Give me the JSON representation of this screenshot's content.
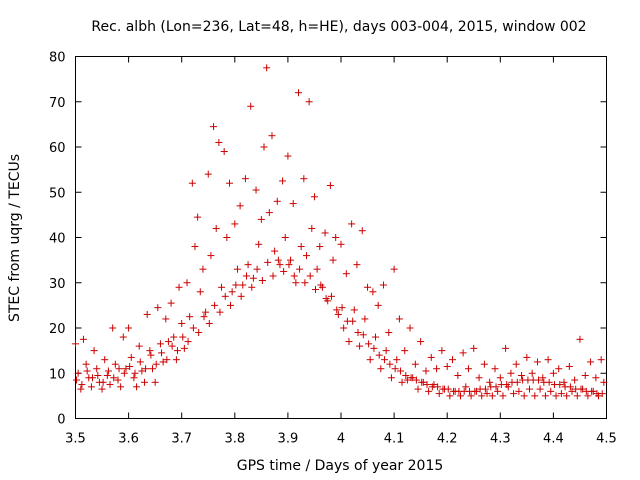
{
  "chart_data": {
    "type": "scatter",
    "title": "Rec. albh (Lon=236, Lat=48, h=HE), days 003-004, 2015, window 002",
    "xlabel": "GPS time / Days of year 2015",
    "ylabel": "STEC from uqrg / TECUs",
    "xlim": [
      3.5,
      4.5
    ],
    "ylim": [
      0,
      80
    ],
    "xticks": [
      "3.5",
      "3.6",
      "3.7",
      "3.8",
      "3.9",
      "4",
      "4.1",
      "4.2",
      "4.3",
      "4.4",
      "4.5"
    ],
    "yticks": [
      "0",
      "10",
      "20",
      "30",
      "40",
      "50",
      "60",
      "70",
      "80"
    ],
    "marker": "plus",
    "color": "#cc0000",
    "series": [
      {
        "name": "STEC",
        "points": [
          [
            3.5,
            16.5
          ],
          [
            3.505,
            10.0
          ],
          [
            3.51,
            6.5
          ],
          [
            3.515,
            17.5
          ],
          [
            3.52,
            12.0
          ],
          [
            3.525,
            9.0
          ],
          [
            3.53,
            7.0
          ],
          [
            3.535,
            15.0
          ],
          [
            3.54,
            11.0
          ],
          [
            3.545,
            8.0
          ],
          [
            3.55,
            6.5
          ],
          [
            3.555,
            13.0
          ],
          [
            3.56,
            9.5
          ],
          [
            3.565,
            7.5
          ],
          [
            3.57,
            20.0
          ],
          [
            3.575,
            12.0
          ],
          [
            3.58,
            8.5
          ],
          [
            3.585,
            7.0
          ],
          [
            3.59,
            18.0
          ],
          [
            3.595,
            11.0
          ],
          [
            3.6,
            20.0
          ],
          [
            3.605,
            13.5
          ],
          [
            3.61,
            9.0
          ],
          [
            3.615,
            7.0
          ],
          [
            3.62,
            16.0
          ],
          [
            3.625,
            10.5
          ],
          [
            3.63,
            8.0
          ],
          [
            3.635,
            23.0
          ],
          [
            3.64,
            15.0
          ],
          [
            3.645,
            11.0
          ],
          [
            3.65,
            8.0
          ],
          [
            3.655,
            24.5
          ],
          [
            3.66,
            16.5
          ],
          [
            3.665,
            12.5
          ],
          [
            3.67,
            22.0
          ],
          [
            3.675,
            17.0
          ],
          [
            3.68,
            25.5
          ],
          [
            3.685,
            18.0
          ],
          [
            3.69,
            13.0
          ],
          [
            3.695,
            29.0
          ],
          [
            3.7,
            21.0
          ],
          [
            3.705,
            15.5
          ],
          [
            3.71,
            30.0
          ],
          [
            3.715,
            22.5
          ],
          [
            3.72,
            52.0
          ],
          [
            3.725,
            38.0
          ],
          [
            3.73,
            44.5
          ],
          [
            3.735,
            28.0
          ],
          [
            3.74,
            33.0
          ],
          [
            3.745,
            23.5
          ],
          [
            3.75,
            54.0
          ],
          [
            3.755,
            36.0
          ],
          [
            3.76,
            64.5
          ],
          [
            3.765,
            42.0
          ],
          [
            3.77,
            61.0
          ],
          [
            3.775,
            29.0
          ],
          [
            3.78,
            59.0
          ],
          [
            3.785,
            40.0
          ],
          [
            3.79,
            52.0
          ],
          [
            3.795,
            28.0
          ],
          [
            3.8,
            43.0
          ],
          [
            3.805,
            33.0
          ],
          [
            3.81,
            47.0
          ],
          [
            3.815,
            29.5
          ],
          [
            3.82,
            53.0
          ],
          [
            3.825,
            34.0
          ],
          [
            3.83,
            69.0
          ],
          [
            3.835,
            31.0
          ],
          [
            3.84,
            50.5
          ],
          [
            3.845,
            38.5
          ],
          [
            3.85,
            44.0
          ],
          [
            3.855,
            60.0
          ],
          [
            3.86,
            77.5
          ],
          [
            3.865,
            45.5
          ],
          [
            3.87,
            62.5
          ],
          [
            3.875,
            37.0
          ],
          [
            3.88,
            48.0
          ],
          [
            3.885,
            34.0
          ],
          [
            3.89,
            52.5
          ],
          [
            3.895,
            40.0
          ],
          [
            3.9,
            58.0
          ],
          [
            3.905,
            35.0
          ],
          [
            3.91,
            47.5
          ],
          [
            3.915,
            30.0
          ],
          [
            3.92,
            72.0
          ],
          [
            3.925,
            38.0
          ],
          [
            3.93,
            53.0
          ],
          [
            3.935,
            36.0
          ],
          [
            3.94,
            70.0
          ],
          [
            3.945,
            42.0
          ],
          [
            3.95,
            49.0
          ],
          [
            3.955,
            33.0
          ],
          [
            3.96,
            38.0
          ],
          [
            3.965,
            29.0
          ],
          [
            3.97,
            41.0
          ],
          [
            3.975,
            26.0
          ],
          [
            3.98,
            51.5
          ],
          [
            3.985,
            35.0
          ],
          [
            3.99,
            40.0
          ],
          [
            3.995,
            23.0
          ],
          [
            4.0,
            38.5
          ],
          [
            4.005,
            20.0
          ],
          [
            4.01,
            32.0
          ],
          [
            4.015,
            17.0
          ],
          [
            4.02,
            43.0
          ],
          [
            4.025,
            24.0
          ],
          [
            4.03,
            34.0
          ],
          [
            4.035,
            16.0
          ],
          [
            4.04,
            41.5
          ],
          [
            4.045,
            22.0
          ],
          [
            4.05,
            29.0
          ],
          [
            4.055,
            13.0
          ],
          [
            4.06,
            28.0
          ],
          [
            4.065,
            18.0
          ],
          [
            4.07,
            25.0
          ],
          [
            4.075,
            11.0
          ],
          [
            4.08,
            29.5
          ],
          [
            4.085,
            15.0
          ],
          [
            4.09,
            19.0
          ],
          [
            4.095,
            9.0
          ],
          [
            4.1,
            33.0
          ],
          [
            4.105,
            13.0
          ],
          [
            4.11,
            22.0
          ],
          [
            4.115,
            8.0
          ],
          [
            4.12,
            15.0
          ],
          [
            4.125,
            8.5
          ],
          [
            4.13,
            20.0
          ],
          [
            4.135,
            9.0
          ],
          [
            4.14,
            12.0
          ],
          [
            4.145,
            6.5
          ],
          [
            4.15,
            17.0
          ],
          [
            4.155,
            8.0
          ],
          [
            4.16,
            10.5
          ],
          [
            4.165,
            6.0
          ],
          [
            4.17,
            13.5
          ],
          [
            4.175,
            7.5
          ],
          [
            4.18,
            11.0
          ],
          [
            4.185,
            5.5
          ],
          [
            4.19,
            15.0
          ],
          [
            4.195,
            6.5
          ],
          [
            4.2,
            11.5
          ],
          [
            4.205,
            5.0
          ],
          [
            4.21,
            13.0
          ],
          [
            4.215,
            6.0
          ],
          [
            4.22,
            9.5
          ],
          [
            4.225,
            5.0
          ],
          [
            4.23,
            14.5
          ],
          [
            4.235,
            7.0
          ],
          [
            4.24,
            11.0
          ],
          [
            4.245,
            5.0
          ],
          [
            4.25,
            15.5
          ],
          [
            4.255,
            6.0
          ],
          [
            4.26,
            9.0
          ],
          [
            4.265,
            5.0
          ],
          [
            4.27,
            12.0
          ],
          [
            4.275,
            5.5
          ],
          [
            4.28,
            8.0
          ],
          [
            4.285,
            5.0
          ],
          [
            4.29,
            11.0
          ],
          [
            4.295,
            6.0
          ],
          [
            4.3,
            9.0
          ],
          [
            4.305,
            5.0
          ],
          [
            4.31,
            15.5
          ],
          [
            4.315,
            7.0
          ],
          [
            4.32,
            10.0
          ],
          [
            4.325,
            5.5
          ],
          [
            4.33,
            12.0
          ],
          [
            4.335,
            6.0
          ],
          [
            4.34,
            9.5
          ],
          [
            4.345,
            5.0
          ],
          [
            4.35,
            13.5
          ],
          [
            4.355,
            6.5
          ],
          [
            4.36,
            10.0
          ],
          [
            4.365,
            5.0
          ],
          [
            4.37,
            12.5
          ],
          [
            4.375,
            6.5
          ],
          [
            4.38,
            9.0
          ],
          [
            4.385,
            5.0
          ],
          [
            4.39,
            13.0
          ],
          [
            4.395,
            6.0
          ],
          [
            4.4,
            10.0
          ],
          [
            4.405,
            5.0
          ],
          [
            4.41,
            11.0
          ],
          [
            4.415,
            5.5
          ],
          [
            4.42,
            8.0
          ],
          [
            4.425,
            5.0
          ],
          [
            4.43,
            11.5
          ],
          [
            4.435,
            6.0
          ],
          [
            4.44,
            8.5
          ],
          [
            4.445,
            5.0
          ],
          [
            4.45,
            17.5
          ],
          [
            4.455,
            6.5
          ],
          [
            4.46,
            9.5
          ],
          [
            4.465,
            5.0
          ],
          [
            4.47,
            12.5
          ],
          [
            4.475,
            6.0
          ],
          [
            4.48,
            9.0
          ],
          [
            4.485,
            5.0
          ],
          [
            4.49,
            13.0
          ],
          [
            4.495,
            8.0
          ],
          [
            3.502,
            8.5
          ],
          [
            3.512,
            7.5
          ],
          [
            3.522,
            10.5
          ],
          [
            3.532,
            9.0
          ],
          [
            3.542,
            9.5
          ],
          [
            3.552,
            8.0
          ],
          [
            3.562,
            10.5
          ],
          [
            3.572,
            9.0
          ],
          [
            3.582,
            11.0
          ],
          [
            3.592,
            10.0
          ],
          [
            3.602,
            11.5
          ],
          [
            3.612,
            10.0
          ],
          [
            3.622,
            12.5
          ],
          [
            3.632,
            11.0
          ],
          [
            3.642,
            14.0
          ],
          [
            3.652,
            12.0
          ],
          [
            3.662,
            14.5
          ],
          [
            3.672,
            13.0
          ],
          [
            3.682,
            16.0
          ],
          [
            3.692,
            15.0
          ],
          [
            3.702,
            18.0
          ],
          [
            3.712,
            17.0
          ],
          [
            3.722,
            20.0
          ],
          [
            3.732,
            19.0
          ],
          [
            3.742,
            22.5
          ],
          [
            3.752,
            21.0
          ],
          [
            3.762,
            25.0
          ],
          [
            3.772,
            23.5
          ],
          [
            3.782,
            27.0
          ],
          [
            3.792,
            25.0
          ],
          [
            3.802,
            29.5
          ],
          [
            3.812,
            27.0
          ],
          [
            3.822,
            31.5
          ],
          [
            3.832,
            29.0
          ],
          [
            3.842,
            33.0
          ],
          [
            3.852,
            30.5
          ],
          [
            3.862,
            34.5
          ],
          [
            3.872,
            31.5
          ],
          [
            3.882,
            35.0
          ],
          [
            3.892,
            32.5
          ],
          [
            3.902,
            34.0
          ],
          [
            3.912,
            31.5
          ],
          [
            3.922,
            33.0
          ],
          [
            3.932,
            30.0
          ],
          [
            3.942,
            31.5
          ],
          [
            3.952,
            28.5
          ],
          [
            3.962,
            29.5
          ],
          [
            3.972,
            26.5
          ],
          [
            3.982,
            27.0
          ],
          [
            3.992,
            24.0
          ],
          [
            4.002,
            24.5
          ],
          [
            4.012,
            21.5
          ],
          [
            4.022,
            21.5
          ],
          [
            4.032,
            19.0
          ],
          [
            4.042,
            18.5
          ],
          [
            4.052,
            16.5
          ],
          [
            4.062,
            15.5
          ],
          [
            4.072,
            14.0
          ],
          [
            4.082,
            13.0
          ],
          [
            4.092,
            12.0
          ],
          [
            4.102,
            11.0
          ],
          [
            4.112,
            10.5
          ],
          [
            4.122,
            9.5
          ],
          [
            4.132,
            9.0
          ],
          [
            4.142,
            8.5
          ],
          [
            4.152,
            8.0
          ],
          [
            4.162,
            7.5
          ],
          [
            4.172,
            7.0
          ],
          [
            4.182,
            7.0
          ],
          [
            4.192,
            6.5
          ],
          [
            4.202,
            6.5
          ],
          [
            4.212,
            6.0
          ],
          [
            4.222,
            6.0
          ],
          [
            4.232,
            6.0
          ],
          [
            4.242,
            6.0
          ],
          [
            4.252,
            6.0
          ],
          [
            4.262,
            6.5
          ],
          [
            4.272,
            6.5
          ],
          [
            4.282,
            7.0
          ],
          [
            4.292,
            7.0
          ],
          [
            4.302,
            7.5
          ],
          [
            4.312,
            7.5
          ],
          [
            4.322,
            8.0
          ],
          [
            4.332,
            8.0
          ],
          [
            4.342,
            8.5
          ],
          [
            4.352,
            8.5
          ],
          [
            4.362,
            8.5
          ],
          [
            4.372,
            8.5
          ],
          [
            4.382,
            8.0
          ],
          [
            4.392,
            8.0
          ],
          [
            4.402,
            7.5
          ],
          [
            4.412,
            7.5
          ],
          [
            4.422,
            7.0
          ],
          [
            4.432,
            7.0
          ],
          [
            4.442,
            6.5
          ],
          [
            4.452,
            6.5
          ],
          [
            4.462,
            6.0
          ],
          [
            4.472,
            6.0
          ],
          [
            4.482,
            5.5
          ],
          [
            4.492,
            5.5
          ]
        ]
      }
    ]
  }
}
